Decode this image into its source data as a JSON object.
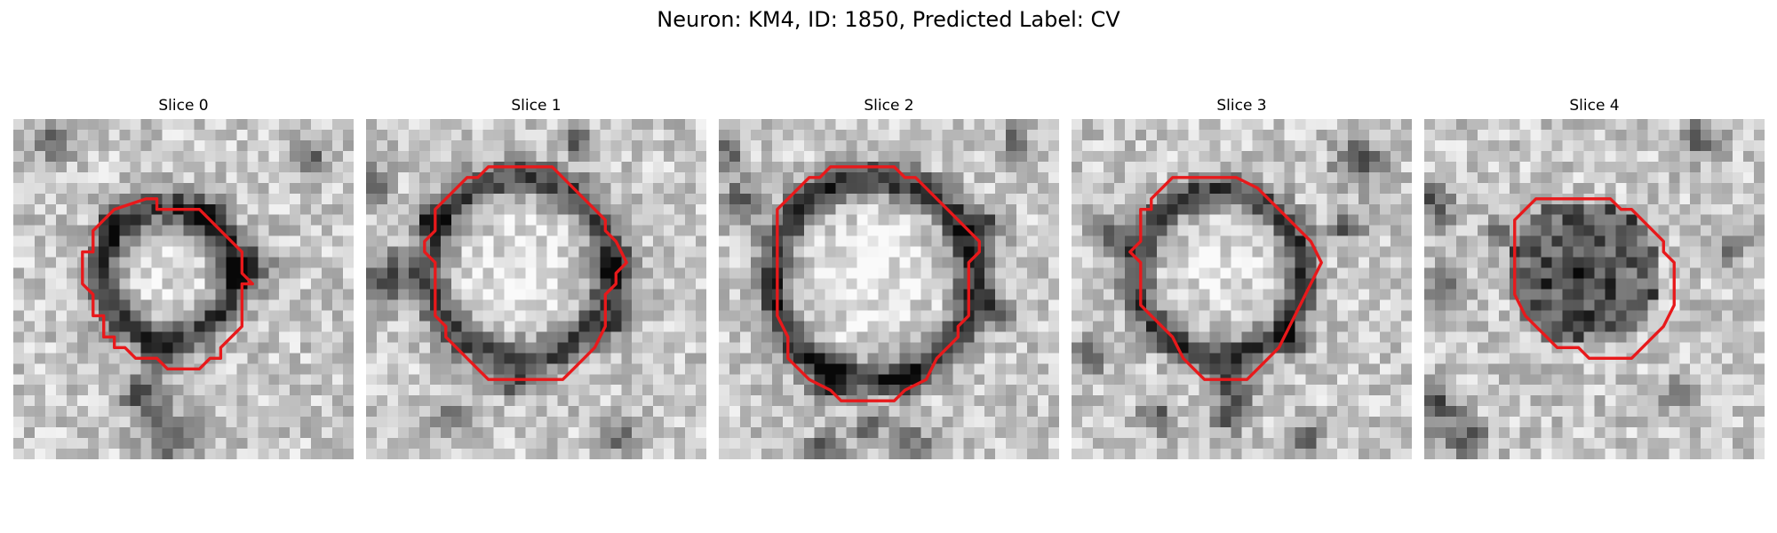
{
  "figure": {
    "title": "Neuron: KM4, ID: 1850, Predicted Label: CV"
  },
  "colors": {
    "contour": "#e8191b",
    "colormap": "grayscale"
  },
  "panels": [
    {
      "title": "Slice 0",
      "description_grid": 32,
      "contour_pixels": [
        [
          13,
          7
        ],
        [
          12,
          7
        ],
        [
          9,
          8
        ],
        [
          8,
          9
        ],
        [
          7,
          10
        ],
        [
          7,
          12
        ],
        [
          6,
          12
        ],
        [
          6,
          15
        ],
        [
          7,
          16
        ],
        [
          7,
          18
        ],
        [
          8,
          18
        ],
        [
          8,
          20
        ],
        [
          9,
          20
        ],
        [
          9,
          21
        ],
        [
          10,
          21
        ],
        [
          11,
          22
        ],
        [
          13,
          22
        ],
        [
          14,
          23
        ],
        [
          17,
          23
        ],
        [
          18,
          22
        ],
        [
          19,
          22
        ],
        [
          19,
          21
        ],
        [
          21,
          19
        ],
        [
          21,
          15
        ],
        [
          22,
          15
        ],
        [
          21,
          14
        ],
        [
          21,
          12
        ],
        [
          20,
          11
        ],
        [
          19,
          10
        ],
        [
          18,
          9
        ],
        [
          17,
          8
        ],
        [
          16,
          8
        ],
        [
          15,
          8
        ],
        [
          14,
          8
        ],
        [
          13,
          8
        ]
      ],
      "blobs": [
        {
          "cx": 14.5,
          "cy": 14.5,
          "r": 6.2,
          "dark": 0.55,
          "w": 1.6
        },
        {
          "cx": 14.5,
          "cy": 14.5,
          "r": 0,
          "bright": 0.12,
          "w": 5
        }
      ],
      "darkspots": [
        [
          22,
          14,
          2.2
        ],
        [
          14,
          22,
          1.5
        ],
        [
          18,
          9,
          1.6
        ],
        [
          9,
          10,
          1.2
        ],
        [
          12,
          26,
          2.0
        ],
        [
          15,
          30,
          2.4
        ],
        [
          4,
          2,
          1.6
        ],
        [
          28,
          4,
          1.5
        ]
      ]
    },
    {
      "title": "Slice 1",
      "description_grid": 32,
      "contour_pixels": [
        [
          11,
          4
        ],
        [
          10,
          5
        ],
        [
          9,
          5
        ],
        [
          8,
          6
        ],
        [
          7,
          7
        ],
        [
          6,
          8
        ],
        [
          6,
          10
        ],
        [
          5,
          11
        ],
        [
          5,
          12
        ],
        [
          6,
          13
        ],
        [
          6,
          18
        ],
        [
          7,
          19
        ],
        [
          7,
          20
        ],
        [
          8,
          21
        ],
        [
          9,
          22
        ],
        [
          10,
          23
        ],
        [
          11,
          24
        ],
        [
          18,
          24
        ],
        [
          19,
          23
        ],
        [
          20,
          22
        ],
        [
          21,
          21
        ],
        [
          22,
          19
        ],
        [
          22,
          16
        ],
        [
          23,
          15
        ],
        [
          23,
          14
        ],
        [
          24,
          13
        ],
        [
          23,
          11
        ],
        [
          22,
          10
        ],
        [
          22,
          9
        ],
        [
          21,
          8
        ],
        [
          20,
          7
        ],
        [
          19,
          6
        ],
        [
          18,
          5
        ],
        [
          17,
          4
        ]
      ],
      "blobs": [
        {
          "cx": 14.5,
          "cy": 14.0,
          "r": 8.6,
          "dark": 0.5,
          "w": 1.7
        },
        {
          "cx": 14.5,
          "cy": 14.0,
          "r": 0,
          "bright": 0.15,
          "w": 7
        }
      ],
      "darkspots": [
        [
          2,
          15,
          2.5
        ],
        [
          23,
          14,
          1.8
        ],
        [
          6,
          9,
          1.5
        ],
        [
          14,
          25,
          1.4
        ],
        [
          24,
          19,
          1.5
        ],
        [
          20,
          2,
          1.3
        ],
        [
          8,
          28,
          1.6
        ],
        [
          24,
          30,
          1.5
        ],
        [
          1,
          6,
          1.4
        ]
      ]
    },
    {
      "title": "Slice 2",
      "description_grid": 32,
      "contour_pixels": [
        [
          10,
          4
        ],
        [
          9,
          5
        ],
        [
          8,
          5
        ],
        [
          7,
          6
        ],
        [
          6,
          7
        ],
        [
          5,
          8
        ],
        [
          5,
          10
        ],
        [
          5,
          14
        ],
        [
          5,
          18
        ],
        [
          6,
          20
        ],
        [
          6,
          22
        ],
        [
          7,
          23
        ],
        [
          8,
          24
        ],
        [
          10,
          25
        ],
        [
          11,
          26
        ],
        [
          16,
          26
        ],
        [
          17,
          25
        ],
        [
          19,
          24
        ],
        [
          20,
          22
        ],
        [
          21,
          21
        ],
        [
          22,
          20
        ],
        [
          22,
          19
        ],
        [
          23,
          18
        ],
        [
          23,
          13
        ],
        [
          24,
          12
        ],
        [
          24,
          11
        ],
        [
          23,
          10
        ],
        [
          22,
          9
        ],
        [
          21,
          8
        ],
        [
          20,
          7
        ],
        [
          19,
          6
        ],
        [
          18,
          5
        ],
        [
          17,
          5
        ],
        [
          16,
          4
        ]
      ],
      "blobs": [
        {
          "cx": 14.5,
          "cy": 15.0,
          "r": 9.5,
          "dark": 0.6,
          "w": 1.6
        },
        {
          "cx": 14.5,
          "cy": 15.0,
          "r": 0,
          "bright": 0.18,
          "w": 8
        }
      ],
      "darkspots": [
        [
          2,
          8,
          2.0
        ],
        [
          25,
          10,
          1.8
        ],
        [
          10,
          25,
          1.6
        ],
        [
          18,
          25,
          1.4
        ],
        [
          14,
          29,
          1.4
        ],
        [
          18,
          31,
          1.8
        ],
        [
          10,
          31,
          1.5
        ],
        [
          26,
          18,
          1.6
        ],
        [
          1,
          3,
          1.4
        ],
        [
          28,
          2,
          1.3
        ]
      ]
    },
    {
      "title": "Slice 3",
      "description_grid": 32,
      "contour_pixels": [
        [
          9,
          5
        ],
        [
          8,
          6
        ],
        [
          7,
          7
        ],
        [
          7,
          8
        ],
        [
          6,
          8
        ],
        [
          6,
          10
        ],
        [
          6,
          11
        ],
        [
          5,
          12
        ],
        [
          6,
          13
        ],
        [
          6,
          17
        ],
        [
          7,
          18
        ],
        [
          8,
          19
        ],
        [
          9,
          20
        ],
        [
          10,
          22
        ],
        [
          11,
          23
        ],
        [
          12,
          24
        ],
        [
          16,
          24
        ],
        [
          17,
          23
        ],
        [
          18,
          22
        ],
        [
          19,
          21
        ],
        [
          20,
          19
        ],
        [
          21,
          17
        ],
        [
          22,
          15
        ],
        [
          23,
          13
        ],
        [
          22,
          11
        ],
        [
          21,
          10
        ],
        [
          20,
          9
        ],
        [
          19,
          8
        ],
        [
          18,
          7
        ],
        [
          17,
          6
        ],
        [
          15,
          5
        ],
        [
          14,
          5
        ],
        [
          13,
          5
        ]
      ],
      "blobs": [
        {
          "cx": 14.0,
          "cy": 14.5,
          "r": 7.8,
          "dark": 0.55,
          "w": 1.5
        },
        {
          "cx": 14.0,
          "cy": 14.5,
          "r": 0,
          "bright": 0.15,
          "w": 6.5
        }
      ],
      "darkspots": [
        [
          4,
          11,
          1.8
        ],
        [
          15,
          25,
          2.0
        ],
        [
          15,
          28,
          1.5
        ],
        [
          21,
          21,
          1.4
        ],
        [
          27,
          4,
          2.2
        ],
        [
          26,
          10,
          1.5
        ],
        [
          2,
          22,
          1.6
        ],
        [
          8,
          28,
          1.5
        ],
        [
          22,
          30,
          1.4
        ]
      ]
    },
    {
      "title": "Slice 4",
      "description_grid": 32,
      "contour_pixels": [
        [
          10,
          7
        ],
        [
          9,
          8
        ],
        [
          8,
          9
        ],
        [
          8,
          10
        ],
        [
          8,
          13
        ],
        [
          8,
          16
        ],
        [
          9,
          18
        ],
        [
          10,
          19
        ],
        [
          11,
          20
        ],
        [
          12,
          21
        ],
        [
          14,
          21
        ],
        [
          15,
          22
        ],
        [
          19,
          22
        ],
        [
          20,
          21
        ],
        [
          21,
          20
        ],
        [
          22,
          19
        ],
        [
          23,
          17
        ],
        [
          23,
          14
        ],
        [
          23,
          13
        ],
        [
          22,
          12
        ],
        [
          22,
          11
        ],
        [
          21,
          10
        ],
        [
          20,
          9
        ],
        [
          19,
          8
        ],
        [
          18,
          8
        ],
        [
          17,
          7
        ],
        [
          16,
          7
        ],
        [
          15,
          7
        ],
        [
          14,
          7
        ]
      ],
      "blobs": [
        {
          "cx": 15.0,
          "cy": 14.5,
          "r": 0,
          "darkfill": 0.55,
          "w": 7
        }
      ],
      "darkspots": [
        [
          1,
          8,
          2.0
        ],
        [
          2,
          16,
          1.8
        ],
        [
          1,
          27,
          2.2
        ],
        [
          4,
          30,
          1.8
        ],
        [
          26,
          2,
          1.8
        ],
        [
          29,
          12,
          1.4
        ],
        [
          24,
          26,
          1.3
        ],
        [
          7,
          11,
          1.4
        ]
      ]
    }
  ]
}
